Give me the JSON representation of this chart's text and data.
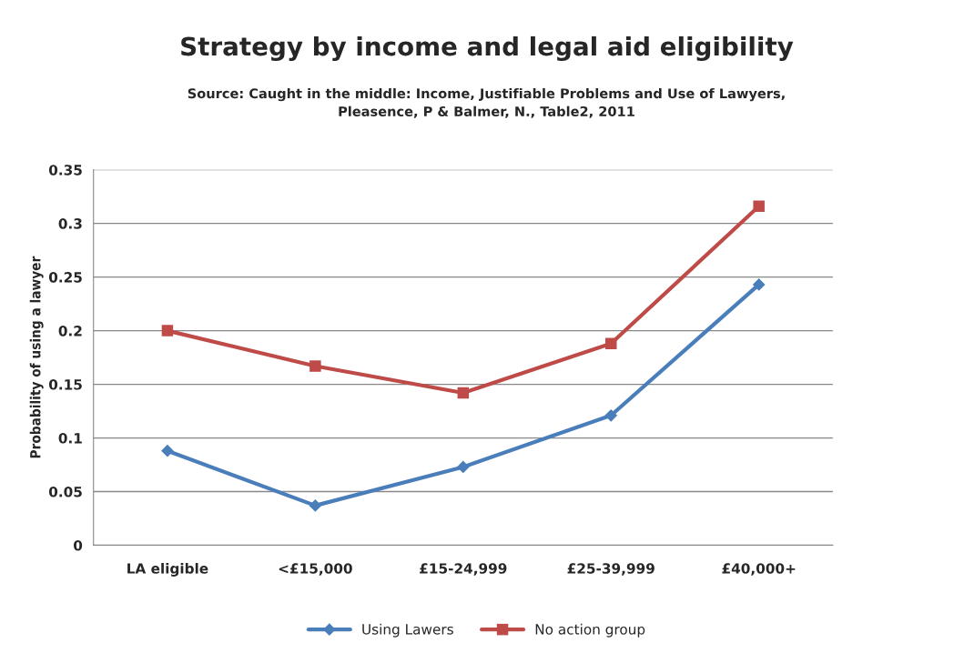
{
  "chart_data": {
    "type": "line",
    "title": "Strategy by income and legal aid eligibility",
    "subtitle": "Source: Caught in the middle: Income, Justifiable Problems and Use of Lawyers,\nPleasence, P & Balmer, N., Table2, 2011",
    "ylabel": "Probability of using a lawyer",
    "categories": [
      "LA eligible",
      "<£15,000",
      "£15-24,999",
      "£25-39,999",
      "£40,000+"
    ],
    "series": [
      {
        "name": "Using Lawers",
        "color": "#4a7ebb",
        "marker": "diamond",
        "values": [
          0.088,
          0.037,
          0.073,
          0.121,
          0.243
        ]
      },
      {
        "name": "No action group",
        "color": "#be4b48",
        "marker": "square",
        "values": [
          0.2,
          0.167,
          0.142,
          0.188,
          0.316
        ]
      }
    ],
    "ylim": [
      0,
      0.35
    ],
    "yticks": [
      0,
      0.05,
      0.1,
      0.15,
      0.2,
      0.25,
      0.3,
      0.35
    ],
    "grid": "y",
    "legend": "bottom",
    "line_style": "solid"
  }
}
